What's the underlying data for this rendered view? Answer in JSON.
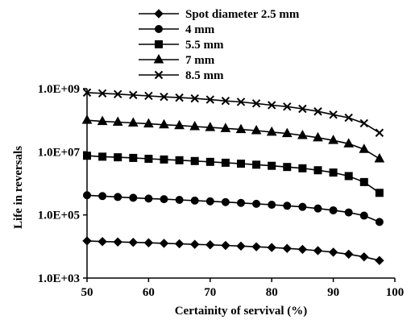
{
  "chart_data": {
    "type": "line",
    "xlabel": "Certainity of servival (%)",
    "ylabel": "Life in reversals",
    "xlim": [
      50,
      100
    ],
    "ylim_log10": [
      3,
      9
    ],
    "y_scale": "log",
    "x_ticks": [
      50,
      60,
      70,
      80,
      90,
      100
    ],
    "y_ticks": [
      {
        "value": 1000,
        "label": "1.0E+03"
      },
      {
        "value": 100000,
        "label": "1.0E+05"
      },
      {
        "value": 10000000,
        "label": "1.0E+07"
      },
      {
        "value": 1000000000,
        "label": "1.0E+09"
      }
    ],
    "grid": false,
    "legend_position": "top-center",
    "x": [
      50,
      52.5,
      55,
      57.5,
      60,
      62.5,
      65,
      67.5,
      70,
      72.5,
      75,
      77.5,
      80,
      82.5,
      85,
      87.5,
      90,
      92.5,
      95,
      97.5
    ],
    "series": [
      {
        "name": "Spot diameter 2.5 mm",
        "marker": "diamond",
        "values": [
          15000,
          14300,
          13900,
          13500,
          13100,
          12600,
          12200,
          11700,
          11300,
          10800,
          10300,
          9800,
          9300,
          8700,
          8100,
          7400,
          6600,
          5700,
          4700,
          3600
        ]
      },
      {
        "name": "4 mm",
        "marker": "circle",
        "values": [
          420000,
          395000,
          370000,
          350000,
          330000,
          315000,
          300000,
          285000,
          270000,
          255000,
          240000,
          225000,
          210000,
          195000,
          180000,
          160000,
          140000,
          120000,
          95000,
          60000
        ]
      },
      {
        "name": "5.5 mm",
        "marker": "square",
        "values": [
          7500000,
          7000000,
          6700000,
          6400000,
          6000000,
          5700000,
          5400000,
          5100000,
          4800000,
          4500000,
          4200000,
          3900000,
          3600000,
          3300000,
          3000000,
          2600000,
          2200000,
          1700000,
          1100000,
          500000
        ]
      },
      {
        "name": "7 mm",
        "marker": "triangle",
        "values": [
          100000000,
          92000000,
          87000000,
          82000000,
          77000000,
          72000000,
          68000000,
          63000000,
          59000000,
          55000000,
          51000000,
          47000000,
          42000000,
          38000000,
          33000000,
          28000000,
          23000000,
          18000000,
          12000000,
          6000000
        ]
      },
      {
        "name": "8.5 mm",
        "marker": "x",
        "values": [
          750000000,
          710000000,
          670000000,
          630000000,
          590000000,
          550000000,
          520000000,
          490000000,
          450000000,
          410000000,
          380000000,
          340000000,
          300000000,
          270000000,
          230000000,
          190000000,
          150000000,
          120000000,
          80000000,
          40000000
        ]
      }
    ]
  }
}
